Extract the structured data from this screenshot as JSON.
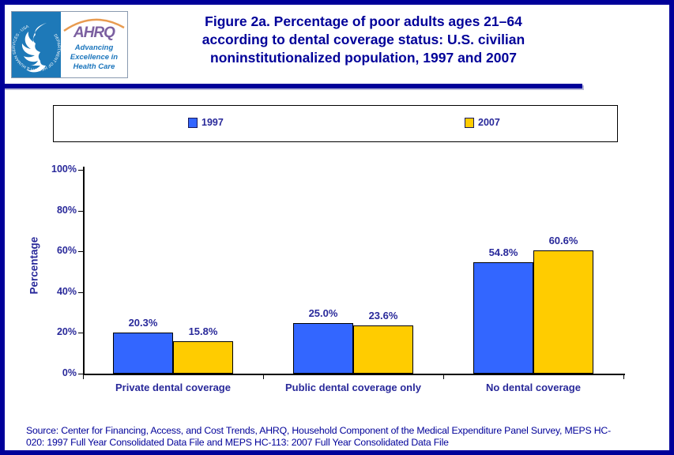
{
  "header": {
    "logo": {
      "hhs_seal_text": "DEPARTMENT OF HEALTH & HUMAN SERVICES - USA",
      "ahrq_acronym": "AHRQ",
      "ahrq_tagline_line1": "Advancing",
      "ahrq_tagline_line2": "Excellence in",
      "ahrq_tagline_line3": "Health Care"
    },
    "title_line1": "Figure 2a. Percentage of poor adults ages 21–64",
    "title_line2": "according to dental coverage status: U.S. civilian",
    "title_line3": "noninstitutionalized population, 1997 and 2007"
  },
  "legend": {
    "items": [
      {
        "label": "1997",
        "color": "#3366FF"
      },
      {
        "label": "2007",
        "color": "#FFCC00"
      }
    ]
  },
  "chart_data": {
    "type": "bar",
    "title": "Figure 2a. Percentage of poor adults ages 21–64 according to dental coverage status: U.S. civilian noninstitutionalized population, 1997 and 2007",
    "categories": [
      "Private dental coverage",
      "Public dental coverage only",
      "No dental coverage"
    ],
    "series": [
      {
        "name": "1997",
        "color": "#3366FF",
        "values": [
          20.3,
          25.0,
          54.8
        ],
        "labels": [
          "20.3%",
          "25.0%",
          "54.8%"
        ]
      },
      {
        "name": "2007",
        "color": "#FFCC00",
        "values": [
          15.8,
          23.6,
          60.6
        ],
        "labels": [
          "15.8%",
          "23.6%",
          "60.6%"
        ]
      }
    ],
    "xlabel": "",
    "ylabel": "Percentage",
    "ylim": [
      0,
      100
    ],
    "yticks": [
      0,
      20,
      40,
      60,
      80,
      100
    ],
    "ytick_labels": [
      "0%",
      "20%",
      "40%",
      "60%",
      "80%",
      "100%"
    ],
    "grid": false,
    "legend_position": "top"
  },
  "footer": {
    "source_line1": "Source: Center for Financing, Access, and Cost Trends, AHRQ, Household Component of the Medical Expenditure Panel Survey, MEPS HC-",
    "source_line2": "020: 1997 Full Year Consolidated Data File and MEPS HC-113: 2007 Full Year Consolidated Data File"
  }
}
